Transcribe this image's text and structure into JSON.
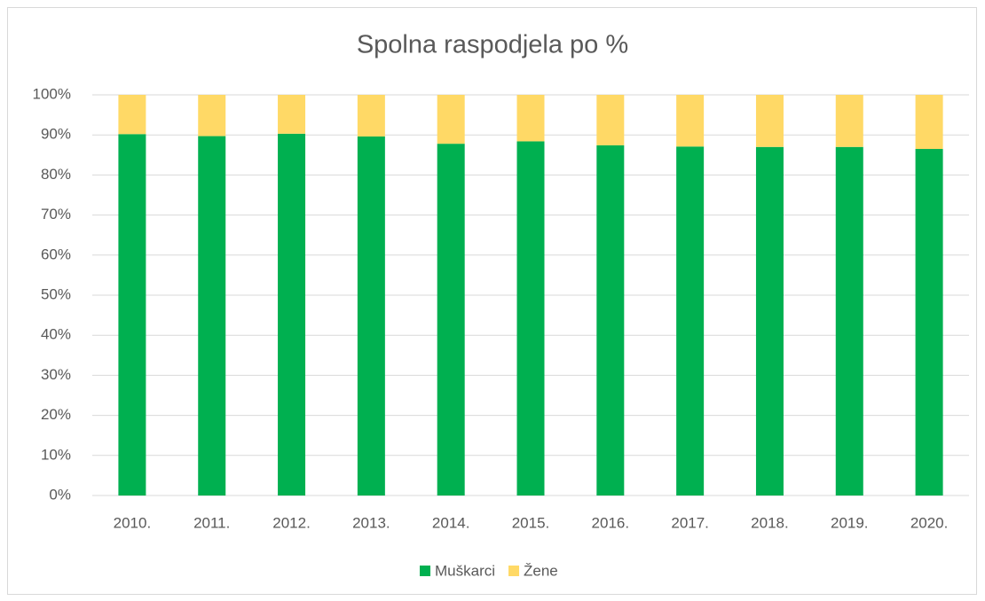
{
  "chart_data": {
    "type": "stacked_bar",
    "title": "Spolna raspodjela po %",
    "categories": [
      "2010.",
      "2011.",
      "2012.",
      "2013.",
      "2014.",
      "2015.",
      "2016.",
      "2017.",
      "2018.",
      "2019.",
      "2020."
    ],
    "series": [
      {
        "name": "Muškarci",
        "color": "#00b050",
        "values": [
          90.2,
          89.7,
          90.3,
          89.6,
          87.8,
          88.4,
          87.4,
          87.1,
          87.0,
          87.0,
          86.5
        ]
      },
      {
        "name": "Žene",
        "color": "#ffd966",
        "values": [
          9.8,
          10.3,
          9.7,
          10.4,
          12.2,
          11.6,
          12.6,
          12.9,
          13.0,
          13.0,
          13.5
        ]
      }
    ],
    "ylim": [
      0,
      100
    ],
    "yticks": [
      {
        "value": 0,
        "label": "0%"
      },
      {
        "value": 10,
        "label": "10%"
      },
      {
        "value": 20,
        "label": "20%"
      },
      {
        "value": 30,
        "label": "30%"
      },
      {
        "value": 40,
        "label": "40%"
      },
      {
        "value": 50,
        "label": "50%"
      },
      {
        "value": 60,
        "label": "60%"
      },
      {
        "value": 70,
        "label": "70%"
      },
      {
        "value": 80,
        "label": "80%"
      },
      {
        "value": 90,
        "label": "90%"
      },
      {
        "value": 100,
        "label": "100%"
      }
    ],
    "grid": true,
    "legend": "bottom"
  }
}
